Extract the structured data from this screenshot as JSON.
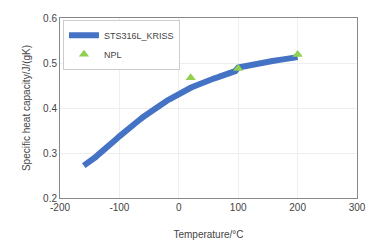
{
  "chart_data": {
    "type": "line",
    "xlabel": "Temperature/°C",
    "ylabel": "Specific heat capacity/J/(gK)",
    "xlim": [
      -200,
      300
    ],
    "ylim": [
      0.2,
      0.6
    ],
    "xticks": [
      -200,
      -100,
      0,
      100,
      200,
      300
    ],
    "yticks": [
      0.2,
      0.3,
      0.4,
      0.5,
      0.6
    ],
    "grid": true,
    "legend": "upper left",
    "series": [
      {
        "name": "STS316L_KRISS",
        "type": "line",
        "color": "#4472C4",
        "x": [
          -160,
          -155,
          -150,
          -145,
          -140,
          -135,
          -130,
          -125,
          -120,
          -115,
          -110,
          -105,
          -100,
          -95,
          -90,
          -85,
          -80,
          -75,
          -70,
          -65,
          -60,
          -55,
          -50,
          -45,
          -40,
          -35,
          -30,
          -25,
          -20,
          -15,
          -10,
          -5,
          0,
          5,
          10,
          15,
          20,
          25,
          30,
          35,
          40,
          45,
          50,
          55,
          60,
          65,
          70,
          75,
          80,
          85,
          90,
          95,
          100,
          110,
          120,
          130,
          140,
          150,
          160,
          170,
          180,
          190,
          200
        ],
        "values": [
          0.272,
          0.276,
          0.281,
          0.286,
          0.291,
          0.297,
          0.302,
          0.308,
          0.313,
          0.319,
          0.325,
          0.331,
          0.337,
          0.343,
          0.349,
          0.355,
          0.36,
          0.365,
          0.37,
          0.375,
          0.38,
          0.385,
          0.39,
          0.394,
          0.399,
          0.403,
          0.408,
          0.412,
          0.416,
          0.42,
          0.424,
          0.427,
          0.431,
          0.434,
          0.438,
          0.441,
          0.445,
          0.448,
          0.451,
          0.453,
          0.456,
          0.458,
          0.461,
          0.463,
          0.466,
          0.468,
          0.47,
          0.472,
          0.475,
          0.477,
          0.479,
          0.482,
          0.49,
          0.493,
          0.496,
          0.499,
          0.501,
          0.503,
          0.505,
          0.507,
          0.509,
          0.511,
          0.513
        ]
      },
      {
        "name": "NPL",
        "type": "scatter",
        "marker": "triangle",
        "color": "#92D050",
        "x": [
          20,
          100,
          200
        ],
        "values": [
          0.467,
          0.488,
          0.519
        ]
      }
    ]
  }
}
